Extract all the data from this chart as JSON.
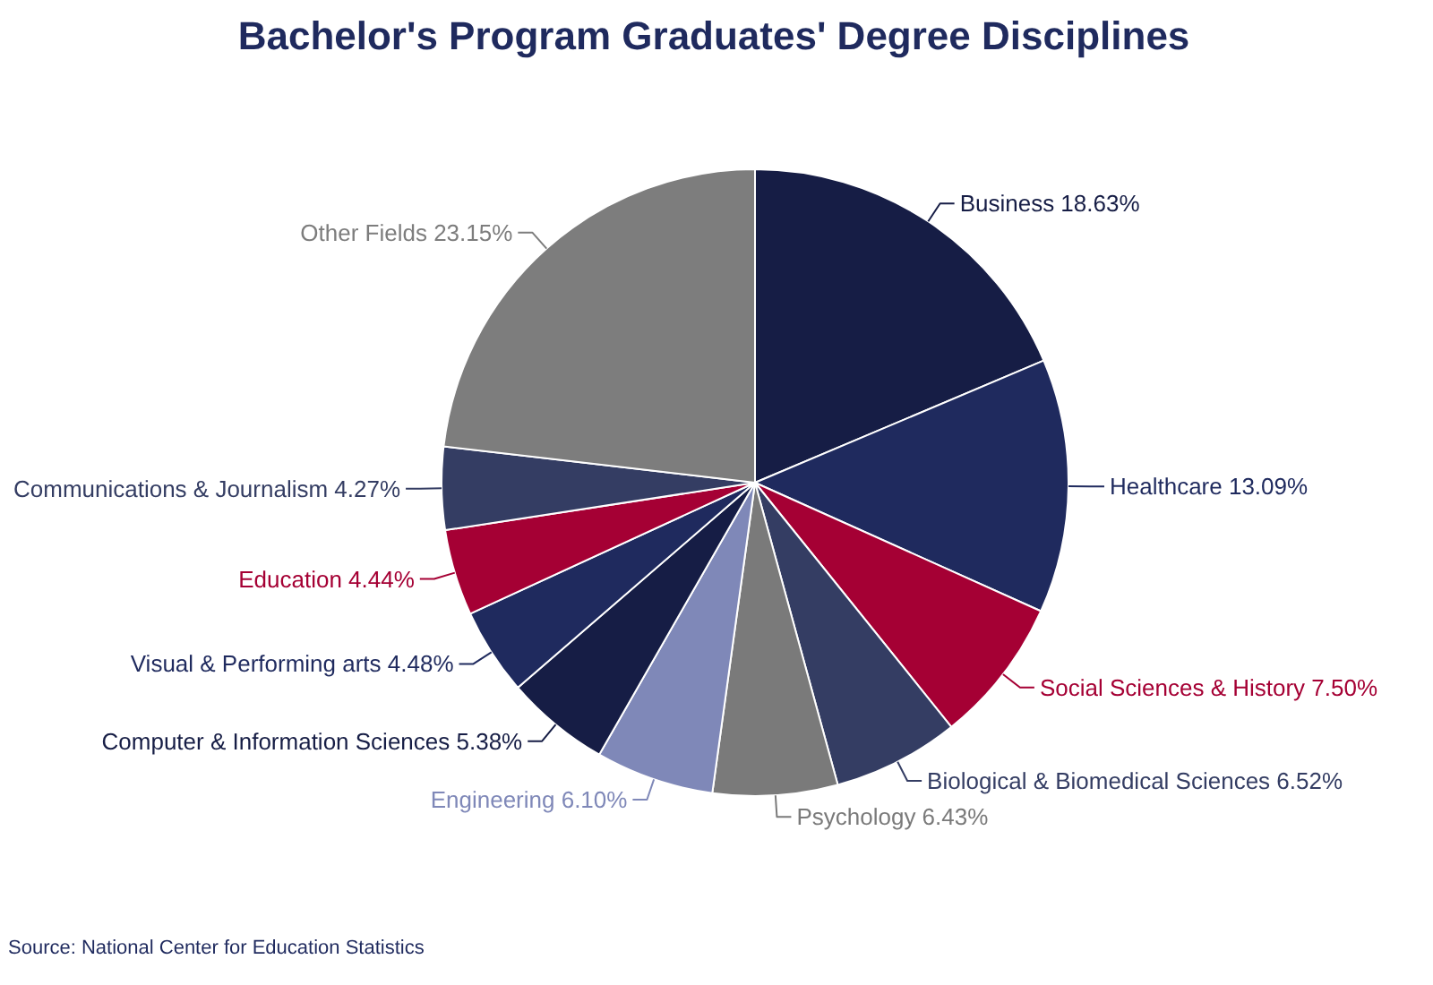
{
  "chart_data": {
    "type": "pie",
    "title": "Bachelor's Program Graduates' Degree Disciplines",
    "categories": [
      "Business",
      "Healthcare",
      "Social Sciences & History",
      "Biological & Biomedical Sciences",
      "Psychology",
      "Engineering",
      "Computer & Information Sciences",
      "Visual & Performing arts",
      "Education",
      "Communications & Journalism",
      "Other Fields"
    ],
    "values": [
      18.63,
      13.09,
      7.5,
      6.52,
      6.43,
      6.1,
      5.38,
      4.48,
      4.44,
      4.27,
      23.15
    ],
    "colors": [
      "#161d45",
      "#1f2a5e",
      "#a50034",
      "#343d63",
      "#7a7a7a",
      "#7f88b8",
      "#161d45",
      "#1f2a5e",
      "#a50034",
      "#343d63",
      "#7d7d7d"
    ],
    "value_labels": [
      "18.63%",
      "13.09%",
      "7.50%",
      "6.52%",
      "6.43%",
      "6.10%",
      "5.38%",
      "4.48%",
      "4.44%",
      "4.27%",
      "23.15%"
    ],
    "annotations": [
      "Source: National Center for Education Statistics"
    ]
  }
}
